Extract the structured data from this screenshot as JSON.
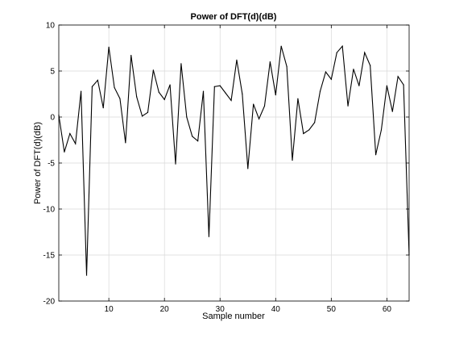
{
  "chart_data": {
    "type": "line",
    "title": "Power of DFT(d)(dB)",
    "xlabel": "Sample number",
    "ylabel": "Power of DFT(d)(dB)",
    "xlim": [
      1,
      64
    ],
    "ylim": [
      -20,
      10
    ],
    "x_ticks": [
      10,
      20,
      30,
      40,
      50,
      60
    ],
    "y_ticks": [
      -20,
      -15,
      -10,
      -5,
      0,
      5,
      10
    ],
    "grid": true,
    "line_color": "#000000",
    "series": [
      {
        "x": [
          1,
          2,
          3,
          4,
          5,
          6,
          7,
          8,
          9,
          10,
          11,
          12,
          13,
          14,
          15,
          16,
          17,
          18,
          19,
          20,
          21,
          22,
          23,
          24,
          25,
          26,
          27,
          28,
          29,
          30,
          31,
          32,
          33,
          34,
          35,
          36,
          37,
          38,
          39,
          40,
          41,
          42,
          43,
          44,
          45,
          46,
          47,
          48,
          49,
          50,
          51,
          52,
          53,
          54,
          55,
          56,
          57,
          58,
          59,
          60,
          61,
          62,
          63,
          64
        ],
        "values": [
          0.2,
          -3.8,
          -1.8,
          -2.9,
          2.8,
          -17.2,
          3.3,
          4.0,
          1.0,
          7.6,
          3.2,
          2.0,
          -2.8,
          6.7,
          2.2,
          0.1,
          0.5,
          5.1,
          2.7,
          1.9,
          3.5,
          -5.1,
          5.8,
          0.0,
          -2.1,
          -2.6,
          2.8,
          -13.0,
          3.3,
          3.4,
          2.6,
          1.8,
          6.2,
          2.5,
          -5.6,
          1.4,
          -0.2,
          1.2,
          6.0,
          2.4,
          7.7,
          5.5,
          -4.7,
          2.0,
          -1.8,
          -1.4,
          -0.6,
          2.8,
          4.9,
          4.1,
          7.0,
          7.7,
          1.2,
          5.2,
          3.4,
          7.0,
          5.6,
          -4.1,
          -1.4,
          3.4,
          0.6,
          4.4,
          3.5,
          -15.0
        ]
      }
    ]
  }
}
